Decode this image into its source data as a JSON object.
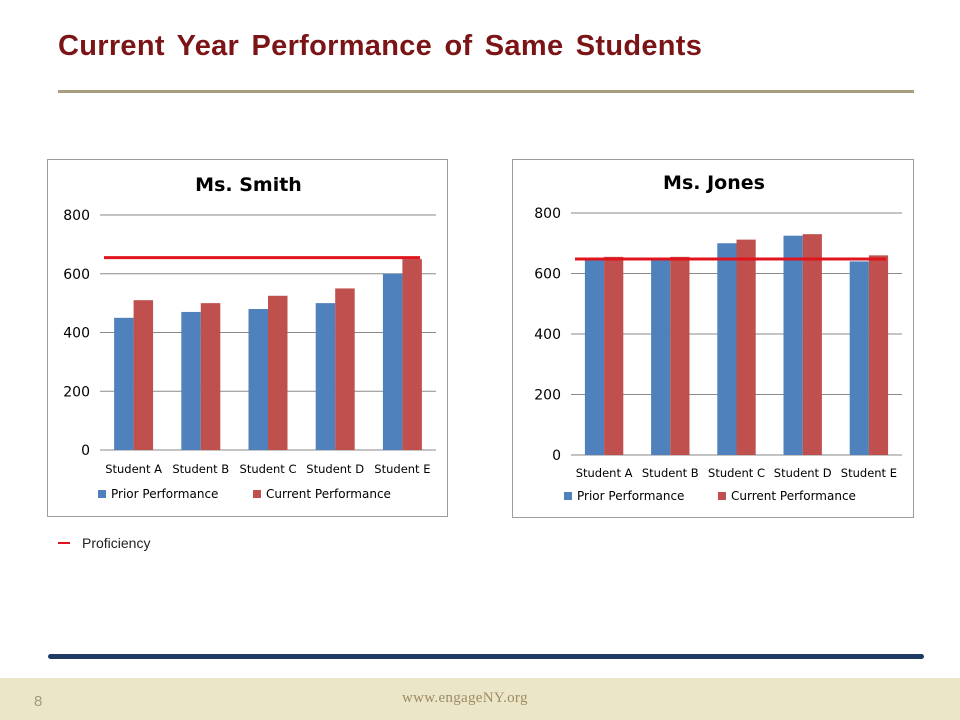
{
  "slide": {
    "title": "Current Year Performance of Same Students",
    "note_label": "Proficiency",
    "page_number": "8",
    "footer_url": "www.engageNY.org"
  },
  "colors": {
    "title": "#7b1416",
    "prior": "#4f81bd",
    "current": "#c0504d",
    "proficiency": "#e0141c"
  },
  "chart_data": [
    {
      "type": "bar",
      "title": "Ms. Smith",
      "categories": [
        "Student A",
        "Student B",
        "Student C",
        "Student D",
        "Student E"
      ],
      "series": [
        {
          "name": "Prior Performance",
          "values": [
            450,
            470,
            480,
            500,
            600
          ]
        },
        {
          "name": "Current Performance",
          "values": [
            510,
            500,
            525,
            550,
            650
          ]
        }
      ],
      "reference_line": {
        "value": 655
      },
      "yticks": [
        0,
        200,
        400,
        600,
        800
      ],
      "ylim": [
        0,
        800
      ],
      "grid": true,
      "legend": "bottom"
    },
    {
      "type": "bar",
      "title": "Ms. Jones",
      "categories": [
        "Student A",
        "Student B",
        "Student C",
        "Student D",
        "Student E"
      ],
      "series": [
        {
          "name": "Prior Performance",
          "values": [
            650,
            650,
            700,
            725,
            640
          ]
        },
        {
          "name": "Current Performance",
          "values": [
            655,
            655,
            712,
            730,
            660
          ]
        }
      ],
      "reference_line": {
        "value": 648
      },
      "yticks": [
        0,
        200,
        400,
        600,
        800
      ],
      "ylim": [
        0,
        800
      ],
      "grid": true,
      "legend": "bottom"
    }
  ]
}
